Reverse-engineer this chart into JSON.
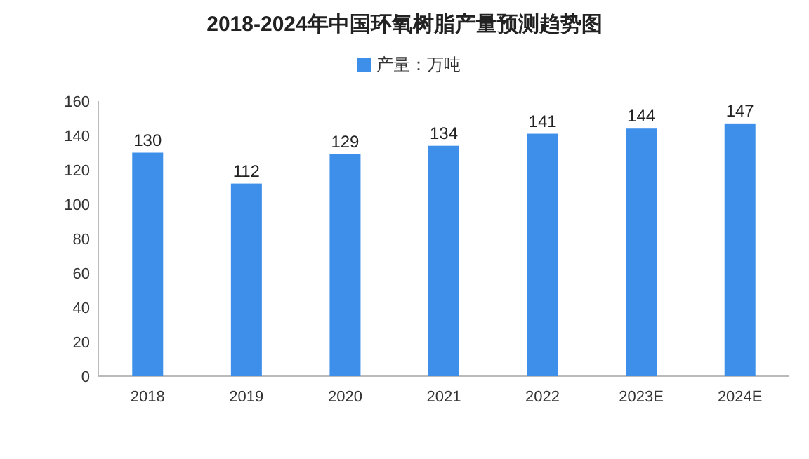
{
  "chart_data": {
    "type": "bar",
    "title": "2018-2024年中国环氧树脂产量预测趋势图",
    "categories": [
      "2018",
      "2019",
      "2020",
      "2021",
      "2022",
      "2023E",
      "2024E"
    ],
    "series": [
      {
        "name": "产量：万吨",
        "color": "#3d8fea",
        "values": [
          130,
          112,
          129,
          134,
          141,
          144,
          147
        ]
      }
    ],
    "ylim": [
      0,
      160
    ],
    "yticks": [
      0,
      20,
      40,
      60,
      80,
      100,
      120,
      140,
      160
    ],
    "data_labels": true,
    "legend": "top",
    "grid": false
  }
}
